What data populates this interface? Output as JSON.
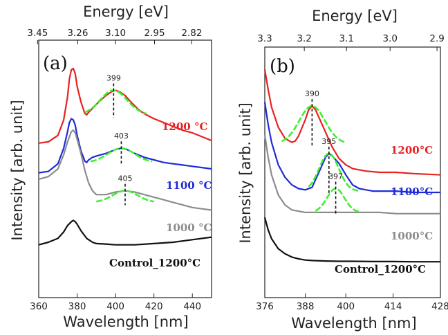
{
  "chart_data": [
    {
      "type": "line",
      "panel_label": "(a)",
      "xlabel": "Wavelength [nm]",
      "ylabel": "Intensity [arb. unit]",
      "top_xlabel": "Energy [eV]",
      "xlim": [
        360,
        450
      ],
      "x_ticks": [
        "360",
        "380",
        "400",
        "420",
        "440"
      ],
      "x_tick_values": [
        360,
        380,
        400,
        420,
        440
      ],
      "top_ticks": [
        "3.45",
        "3.26",
        "3.10",
        "2.95",
        "2.82"
      ],
      "top_tick_values": [
        359.4,
        380.3,
        400.0,
        420.3,
        439.7
      ],
      "ylim": [
        0,
        10
      ],
      "series": [
        {
          "name": "1200 °C",
          "color": "#e8211f",
          "x": [
            360,
            365,
            370,
            373,
            375,
            376,
            377,
            378,
            379,
            380,
            382,
            384,
            385,
            386,
            388,
            390,
            392,
            395,
            398,
            400,
            402,
            405,
            408,
            412,
            416,
            420,
            425,
            430,
            435,
            440,
            445,
            450
          ],
          "y": [
            6.0,
            6.05,
            6.3,
            6.9,
            7.8,
            8.5,
            8.85,
            8.9,
            8.7,
            8.2,
            7.6,
            7.15,
            7.1,
            7.2,
            7.35,
            7.5,
            7.65,
            7.85,
            8.0,
            8.05,
            8.0,
            7.85,
            7.6,
            7.3,
            7.1,
            6.95,
            6.8,
            6.65,
            6.5,
            6.4,
            6.25,
            6.1
          ]
        },
        {
          "name": "1100 °C",
          "color": "#1f2bd6",
          "x": [
            360,
            365,
            370,
            373,
            375,
            376,
            377,
            378,
            379,
            380,
            382,
            384,
            385,
            386,
            388,
            390,
            395,
            400,
            403,
            406,
            410,
            415,
            420,
            425,
            430,
            435,
            440,
            445,
            450
          ],
          "y": [
            4.85,
            4.9,
            5.2,
            5.8,
            6.45,
            6.8,
            6.95,
            6.9,
            6.7,
            6.3,
            5.7,
            5.3,
            5.25,
            5.35,
            5.45,
            5.5,
            5.6,
            5.75,
            5.8,
            5.75,
            5.6,
            5.45,
            5.35,
            5.25,
            5.2,
            5.15,
            5.1,
            5.05,
            5.0
          ]
        },
        {
          "name": "1000 °C",
          "color": "#8c8c8c",
          "x": [
            360,
            365,
            370,
            373,
            375,
            377,
            378,
            379,
            380,
            382,
            384,
            386,
            388,
            390,
            395,
            400,
            405,
            410,
            415,
            420,
            425,
            430,
            435,
            440,
            445,
            450
          ],
          "y": [
            4.6,
            4.7,
            5.0,
            5.55,
            6.05,
            6.45,
            6.5,
            6.4,
            6.15,
            5.6,
            4.95,
            4.45,
            4.15,
            4.0,
            4.0,
            4.1,
            4.15,
            4.1,
            4.0,
            3.9,
            3.8,
            3.7,
            3.6,
            3.5,
            3.45,
            3.4
          ]
        },
        {
          "name": "Control_1200°C",
          "color": "#111111",
          "x": [
            360,
            365,
            370,
            373,
            375,
            377,
            378,
            379,
            380,
            382,
            385,
            388,
            390,
            395,
            400,
            410,
            420,
            430,
            440,
            450
          ],
          "y": [
            2.05,
            2.15,
            2.3,
            2.55,
            2.8,
            2.95,
            3.0,
            2.95,
            2.85,
            2.6,
            2.3,
            2.15,
            2.1,
            2.08,
            2.05,
            2.05,
            2.1,
            2.15,
            2.25,
            2.35
          ]
        }
      ],
      "gaussian_fits": [
        {
          "series": "1200 °C",
          "center": 399,
          "label": "399",
          "x_start": 384,
          "x_end": 416,
          "amplitude": 0.95,
          "sigma": 7,
          "baseline": 7.1
        },
        {
          "series": "1100 °C",
          "center": 403,
          "label": "403",
          "x_start": 387,
          "x_end": 419,
          "amplitude": 0.55,
          "sigma": 7,
          "baseline": 5.25
        },
        {
          "series": "1000 °C",
          "center": 405,
          "label": "405",
          "x_start": 390,
          "x_end": 420,
          "amplitude": 0.45,
          "sigma": 6.5,
          "baseline": 3.7
        }
      ],
      "fit_color": "#3ef02f"
    },
    {
      "type": "line",
      "panel_label": "(b)",
      "xlabel": "Wavelength [nm]",
      "ylabel": "Intensity [arb. unit]",
      "top_xlabel": "Energy [eV]",
      "xlim": [
        376,
        428
      ],
      "x_ticks": [
        "376",
        "388",
        "400",
        "414",
        "428"
      ],
      "x_tick_values": [
        376,
        388,
        400,
        414,
        428
      ],
      "top_ticks": [
        "3.3",
        "3.2",
        "3.1",
        "3.0",
        "2.9"
      ],
      "top_tick_values": [
        376.0,
        387.7,
        400.2,
        413.1,
        427.0
      ],
      "ylim": [
        0,
        10
      ],
      "series": [
        {
          "name": "1200°C",
          "color": "#e8211f",
          "x": [
            376,
            377,
            378,
            380,
            382,
            384,
            385,
            386,
            388,
            389,
            390,
            391,
            392,
            394,
            396,
            398,
            400,
            402,
            404,
            406,
            410,
            415,
            420,
            428
          ],
          "y": [
            9.1,
            8.3,
            7.6,
            6.8,
            6.35,
            6.2,
            6.25,
            6.45,
            7.1,
            7.5,
            7.65,
            7.5,
            7.2,
            6.6,
            6.0,
            5.55,
            5.3,
            5.15,
            5.1,
            5.05,
            5.0,
            5.0,
            4.95,
            4.9
          ]
        },
        {
          "name": "1100°C",
          "color": "#1f2bd6",
          "x": [
            376,
            377,
            378,
            380,
            382,
            384,
            386,
            388,
            390,
            392,
            394,
            395,
            396,
            398,
            400,
            402,
            404,
            406,
            408,
            410,
            415,
            420,
            428
          ],
          "y": [
            7.8,
            6.9,
            6.2,
            5.3,
            4.8,
            4.5,
            4.35,
            4.3,
            4.4,
            5.0,
            5.6,
            5.75,
            5.65,
            5.35,
            4.9,
            4.5,
            4.35,
            4.3,
            4.25,
            4.25,
            4.25,
            4.2,
            4.2
          ]
        },
        {
          "name": "1000°C",
          "color": "#8c8c8c",
          "x": [
            376,
            377,
            378,
            380,
            382,
            384,
            386,
            388,
            390,
            392,
            394,
            396,
            398,
            400,
            402,
            404,
            406,
            410,
            415,
            420,
            428
          ],
          "y": [
            6.5,
            5.6,
            4.9,
            4.1,
            3.7,
            3.5,
            3.45,
            3.4,
            3.4,
            3.4,
            3.4,
            3.4,
            3.4,
            3.4,
            3.4,
            3.4,
            3.4,
            3.4,
            3.35,
            3.35,
            3.35
          ]
        },
        {
          "name": "Control_1200°C",
          "color": "#111111",
          "x": [
            376,
            377,
            378,
            380,
            382,
            384,
            386,
            388,
            390,
            394,
            398,
            402,
            408,
            414,
            420,
            428
          ],
          "y": [
            3.2,
            2.7,
            2.35,
            1.95,
            1.75,
            1.62,
            1.55,
            1.5,
            1.48,
            1.46,
            1.45,
            1.45,
            1.44,
            1.44,
            1.43,
            1.43
          ]
        }
      ],
      "gaussian_fits": [
        {
          "series": "1200°C",
          "center": 390,
          "label": "390",
          "x_start": 381,
          "x_end": 400,
          "amplitude": 1.5,
          "sigma": 3.8,
          "baseline": 6.15
        },
        {
          "series": "1100°C",
          "center": 395,
          "label": "395",
          "x_start": 389,
          "x_end": 404,
          "amplitude": 1.5,
          "sigma": 2.9,
          "baseline": 4.25
        },
        {
          "series": "1000°C",
          "center": 397,
          "label": "397",
          "x_start": 391,
          "x_end": 404,
          "amplitude": 0.95,
          "sigma": 2.6,
          "baseline": 3.4
        }
      ],
      "fit_color": "#3ef02f"
    }
  ]
}
